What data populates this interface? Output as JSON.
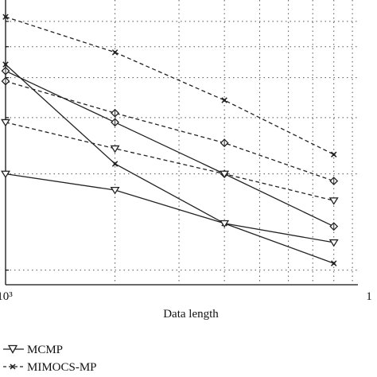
{
  "chart_data": {
    "type": "line",
    "xlabel": "Data length",
    "ylabel": "",
    "x_scale": "log",
    "x_tick_labels": [
      "10³",
      "1"
    ],
    "x": [
      1000,
      2000,
      4000,
      8000
    ],
    "grid": true,
    "series": [
      {
        "name": "",
        "style": "dashed",
        "marker": "x",
        "values": [
          0.62,
          0.48,
          0.34,
          0.23
        ]
      },
      {
        "name": "",
        "style": "dashed",
        "marker": "diamond",
        "values": [
          0.39,
          0.31,
          0.25,
          0.19
        ]
      },
      {
        "name": "",
        "style": "solid",
        "marker": "diamond",
        "values": [
          0.42,
          0.29,
          0.2,
          0.137
        ]
      },
      {
        "name": "",
        "style": "dashed",
        "marker": "triangle-down",
        "values": [
          0.29,
          0.24,
          0.2,
          0.165
        ]
      },
      {
        "name": "",
        "style": "solid",
        "marker": "x",
        "values": [
          0.44,
          0.215,
          0.14,
          0.105
        ]
      },
      {
        "name": "",
        "style": "solid",
        "marker": "triangle-down",
        "values": [
          0.2,
          0.178,
          0.14,
          0.122
        ]
      }
    ],
    "legend": {
      "placement": "bottom",
      "items": [
        {
          "label": "MCMP",
          "marker": "triangle-down",
          "style": "solid"
        },
        {
          "label": "MIMOCS-MP",
          "marker": "x",
          "style": "dashed"
        }
      ]
    }
  }
}
